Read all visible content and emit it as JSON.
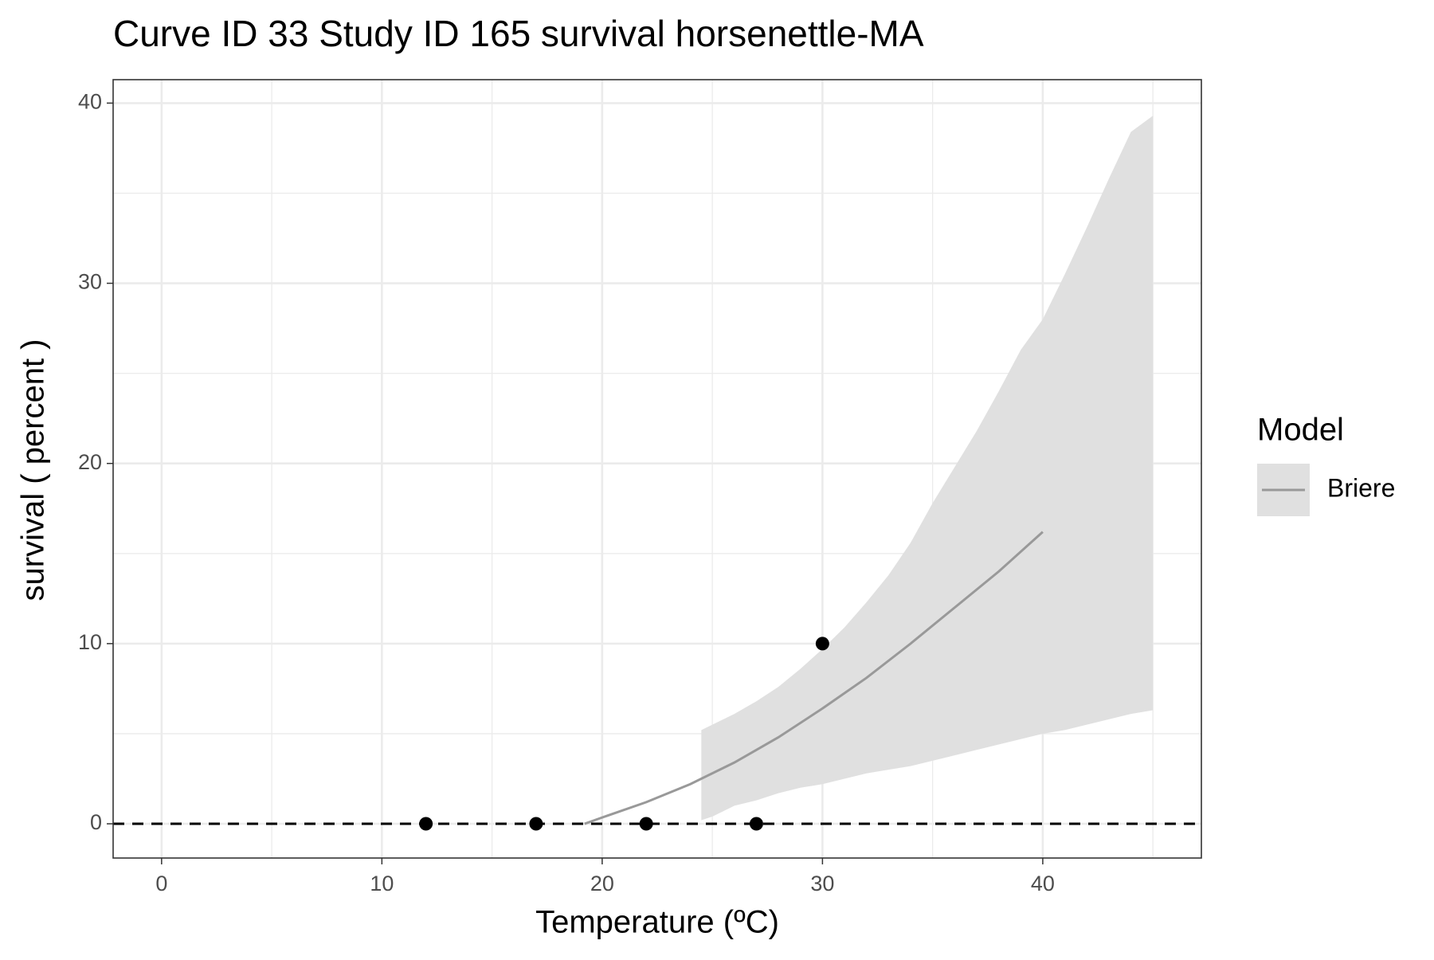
{
  "chart_data": {
    "type": "scatter",
    "title": "Curve ID 33 Study ID 165 survival horsenettle-MA",
    "xlabel": "Temperature (ºC)",
    "ylabel": "survival ( percent )",
    "xlim": [
      -2.2,
      47.2
    ],
    "ylim": [
      -1.9,
      41.3
    ],
    "xticks": [
      0,
      10,
      20,
      30,
      40
    ],
    "yticks": [
      0,
      10,
      20,
      30,
      40
    ],
    "x_minor_ticks": [
      5,
      15,
      25,
      35,
      45
    ],
    "y_minor_ticks": [
      5,
      15,
      25,
      35
    ],
    "grid": true,
    "legend_title": "Model",
    "legend_position": "right",
    "points": {
      "color": "#000000",
      "x": [
        12,
        17,
        22,
        27,
        30
      ],
      "values": [
        0,
        0,
        0,
        0,
        10
      ]
    },
    "series": [
      {
        "name": "Briere",
        "color": "#999999",
        "x": [
          19.2,
          20,
          22,
          24,
          26,
          28,
          30,
          32,
          34,
          36,
          38,
          40
        ],
        "values": [
          0,
          0.35,
          1.2,
          2.2,
          3.4,
          4.8,
          6.4,
          8.1,
          10.0,
          12.0,
          14.0,
          16.2
        ],
        "band": {
          "color": "#e0e0e0",
          "x": [
            24.5,
            25,
            26,
            27,
            28,
            29,
            30,
            31,
            32,
            33,
            34,
            35,
            36,
            37,
            38,
            39,
            40,
            41,
            42,
            43,
            44,
            45
          ],
          "upper": [
            5.2,
            5.5,
            6.1,
            6.8,
            7.6,
            8.6,
            9.7,
            10.9,
            12.3,
            13.8,
            15.6,
            17.8,
            19.8,
            21.8,
            24.0,
            26.3,
            28.0,
            30.5,
            33.1,
            35.8,
            38.4,
            39.3
          ],
          "lower": [
            0.2,
            0.4,
            1.0,
            1.3,
            1.7,
            2.0,
            2.2,
            2.5,
            2.8,
            3.0,
            3.2,
            3.5,
            3.8,
            4.1,
            4.4,
            4.7,
            5.0,
            5.2,
            5.5,
            5.8,
            6.1,
            6.3
          ]
        }
      }
    ],
    "reference_line": {
      "value": 0,
      "color": "#000000",
      "style": "dashed"
    }
  }
}
